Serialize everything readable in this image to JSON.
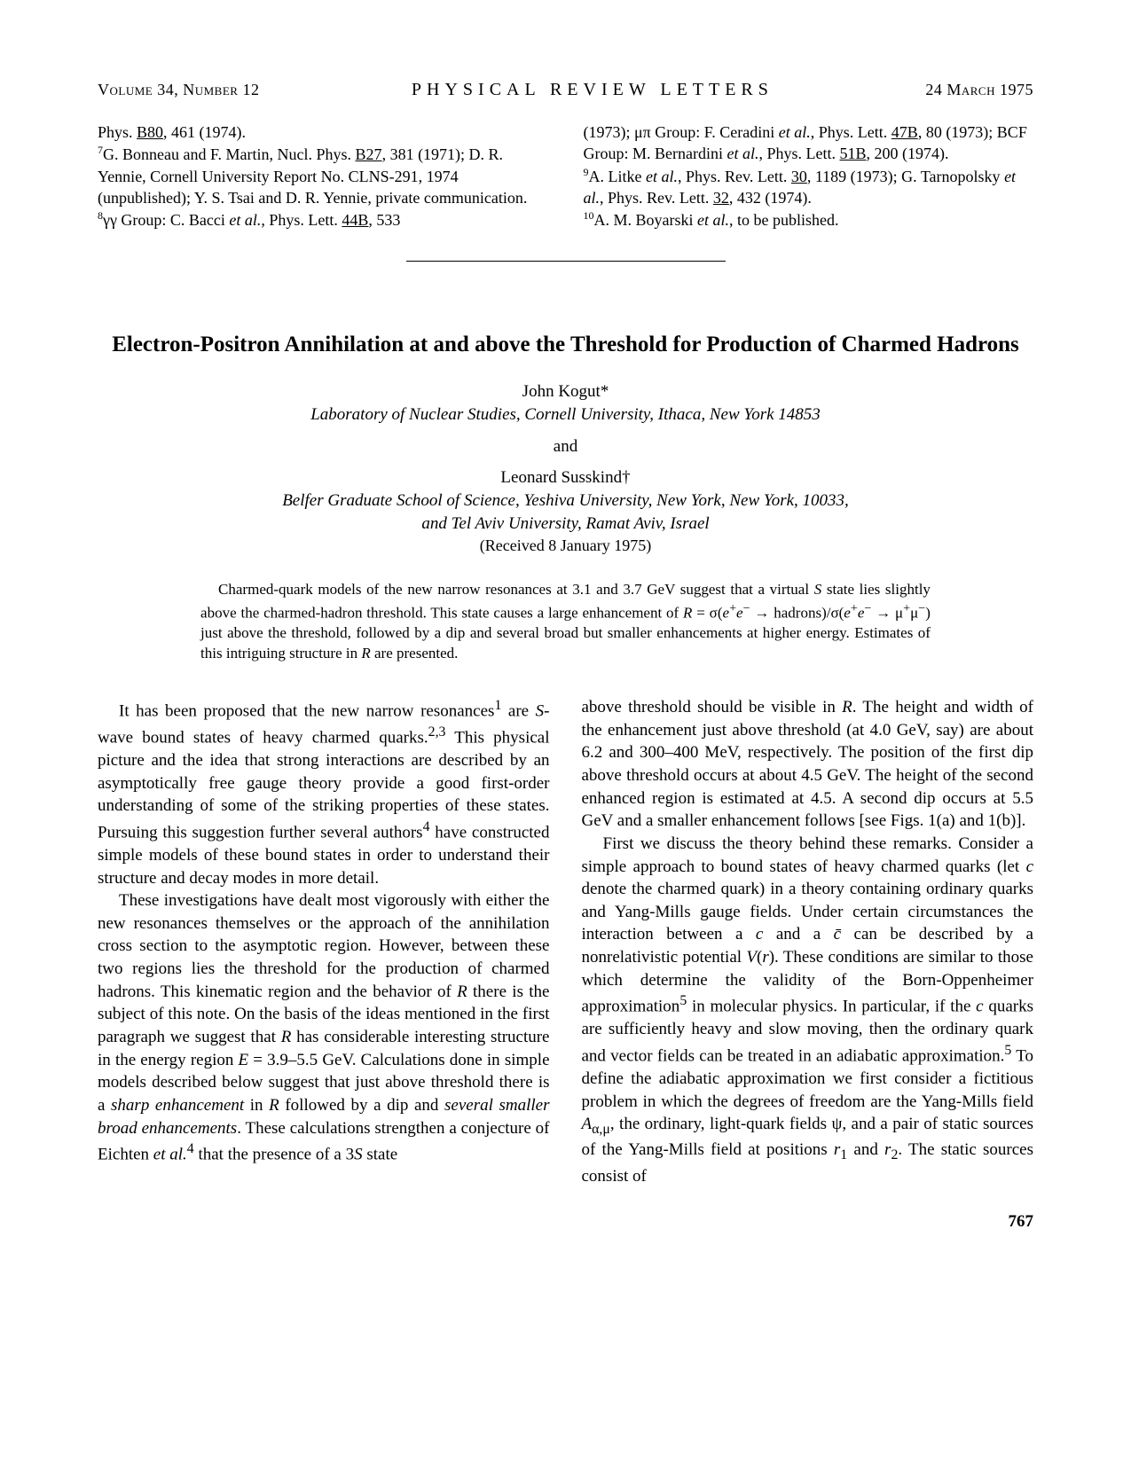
{
  "header": {
    "volume": "Volume 34, Number 12",
    "journal": "PHYSICAL REVIEW LETTERS",
    "date": "24 March 1975"
  },
  "refs_left": "Phys. <span class='u'>B80</span>, 461 (1974).<br><sup>7</sup>G. Bonneau and F. Martin, Nucl. Phys. <span class='u'>B27</span>, 381 (1971); D. R. Yennie, Cornell University Report No. CLNS-291, 1974 (unpublished); Y. S. Tsai and D. R. Yennie, private communication.<br><sup>8</sup>γγ Group: C. Bacci <i>et al.</i>, Phys. Lett. <span class='u'>44B</span>, 533",
  "refs_right": "(1973); μπ Group: F. Ceradini <i>et al.</i>, Phys. Lett. <span class='u'>47B</span>, 80 (1973); BCF Group: M. Bernardini <i>et al.</i>, Phys. Lett. <span class='u'>51B</span>, 200 (1974).<br><sup>9</sup>A. Litke <i>et al.</i>, Phys. Rev. Lett. <span class='u'>30</span>, 1189 (1973); G. Tarnopolsky <i>et al.</i>, Phys. Rev. Lett. <span class='u'>32</span>, 432 (1974).<br><sup>10</sup>A. M. Boyarski <i>et al.</i>, to be published.",
  "title": "Electron-Positron Annihilation at and above the Threshold for Production of Charmed Hadrons",
  "author1_name": "John Kogut*",
  "author1_affil": "Laboratory of Nuclear Studies, Cornell University, Ithaca, New York 14853",
  "and": "and",
  "author2_name": "Leonard Susskind†",
  "author2_affil1": "Belfer Graduate School of Science, Yeshiva University, New York, New York, 10033,",
  "author2_affil2": "and Tel Aviv University, Ramat Aviv, Israel",
  "received": "(Received 8 January 1975)",
  "abstract": "Charmed-quark models of the new narrow resonances at 3.1 and 3.7 GeV suggest that a virtual <i>S</i> state lies slightly above the charmed-hadron threshold. This state causes a large enhancement of <i>R</i> = σ(<i>e</i><sup>+</sup><i>e</i><sup>−</sup> → hadrons)/σ(<i>e</i><sup>+</sup><i>e</i><sup>−</sup> → μ<sup>+</sup>μ<sup>−</sup>) just above the threshold, followed by a dip and several broad but smaller enhancements at higher energy. Estimates of this intriguing structure in <i>R</i> are presented.",
  "body_left_p1": "It has been proposed that the new narrow resonances<sup>1</sup> are <i>S</i>-wave bound states of heavy charmed quarks.<sup>2,3</sup> This physical picture and the idea that strong interactions are described by an asymptotically free gauge theory provide a good first-order understanding of some of the striking properties of these states. Pursuing this suggestion further several authors<sup>4</sup> have constructed simple models of these bound states in order to understand their structure and decay modes in more detail.",
  "body_left_p2": "These investigations have dealt most vigorously with either the new resonances themselves or the approach of the annihilation cross section to the asymptotic region. However, between these two regions lies the threshold for the production of charmed hadrons. This kinematic region and the behavior of <i>R</i> there is the subject of this note. On the basis of the ideas mentioned in the first paragraph we suggest that <i>R</i> has considerable interesting structure in the energy region <i>E</i> = 3.9–5.5 GeV. Calculations done in simple models described below suggest that just above threshold there is a <i>sharp enhancement</i> in <i>R</i> followed by a dip and <i>several smaller broad enhancements</i>. These calculations strengthen a conjecture of Eichten <i>et al.</i><sup>4</sup> that the presence of a 3<i>S</i> state",
  "body_right_p1": "above threshold should be visible in <i>R</i>. The height and width of the enhancement just above threshold (at 4.0 GeV, say) are about 6.2 and 300–400 MeV, respectively. The position of the first dip above threshold occurs at about 4.5 GeV. The height of the second enhanced region is estimated at 4.5. A second dip occurs at 5.5 GeV and a smaller enhancement follows [see Figs. 1(a) and 1(b)].",
  "body_right_p2": "First we discuss the theory behind these remarks. Consider a simple approach to bound states of heavy charmed quarks (let <i>c</i> denote the charmed quark) in a theory containing ordinary quarks and Yang-Mills gauge fields. Under certain circumstances the interaction between a <i>c</i> and a <i>c̄</i> can be described by a nonrelativistic potential <i>V</i>(<i>r</i>). These conditions are similar to those which determine the validity of the Born-Oppenheimer approximation<sup>5</sup> in molecular physics. In particular, if the <i>c</i> quarks are sufficiently heavy and slow moving, then the ordinary quark and vector fields can be treated in an adiabatic approximation.<sup>5</sup> To define the adiabatic approximation we first consider a fictitious problem in which the degrees of freedom are the Yang-Mills field <i>A</i><sub>α,μ</sub>, the ordinary, light-quark fields ψ, and a pair of static sources of the Yang-Mills field at positions <i>r</i><sub>1</sub> and <i>r</i><sub>2</sub>. The static sources consist of",
  "pagenum": "767"
}
